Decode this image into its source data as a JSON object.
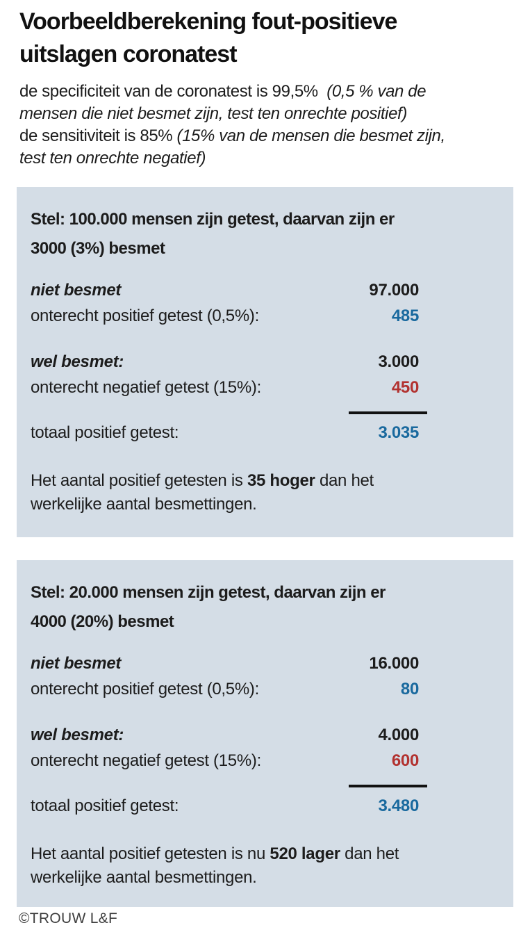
{
  "title": {
    "line1": "Voorbeeldberekening fout-positieve",
    "line2": "uitslagen coronatest"
  },
  "intro": {
    "lines": [
      {
        "normal": "de specificiteit van de coronatest is 99,5%  ",
        "italic": "(0,5 % van de"
      },
      {
        "italic": "mensen die niet besmet zijn, test ten onrechte positief)"
      },
      {
        "normal": "de sensitiviteit is 85% ",
        "italic": "(15% van de mensen die besmet zijn,"
      },
      {
        "italic": "test ten onrechte negatief)"
      }
    ]
  },
  "colors": {
    "positive_blue": "#19699e",
    "negative_red": "#b23230",
    "box_background": "#d4dde6",
    "text_black": "#1c1c1c"
  },
  "boxes": [
    {
      "heading_line1": "Stel: 100.000 mensen zijn getest, daarvan zijn er",
      "heading_line2": "3000 (3%) besmet",
      "rows": [
        {
          "label": "niet besmet",
          "value": "97.000"
        },
        {
          "label": "onterecht positief getest (0,5%):",
          "value": "485"
        },
        {
          "label": "wel besmet:",
          "value": "3.000"
        },
        {
          "label": "onterecht negatief getest (15%):",
          "value": "450"
        },
        {
          "label": "totaal positief getest:",
          "value": "3.035"
        }
      ],
      "summary": {
        "prefix": "Het aantal positief getesten is ",
        "bold": "35 hoger",
        "suffix": " dan het",
        "line2": "werkelijke aantal besmettingen."
      }
    },
    {
      "heading_line1": "Stel: 20.000 mensen zijn getest, daarvan zijn er",
      "heading_line2": "4000 (20%) besmet",
      "rows": [
        {
          "label": "niet besmet",
          "value": "16.000"
        },
        {
          "label": "onterecht positief getest (0,5%):",
          "value": "80"
        },
        {
          "label": "wel besmet:",
          "value": "4.000"
        },
        {
          "label": "onterecht negatief getest (15%):",
          "value": "600"
        },
        {
          "label": "totaal positief getest:",
          "value": "3.480"
        }
      ],
      "summary": {
        "prefix": "Het aantal positief getesten is nu ",
        "bold": "520 lager",
        "suffix": " dan het",
        "line2": "werkelijke aantal besmettingen."
      }
    }
  ],
  "footer": {
    "credit": "©TROUW L&F"
  }
}
